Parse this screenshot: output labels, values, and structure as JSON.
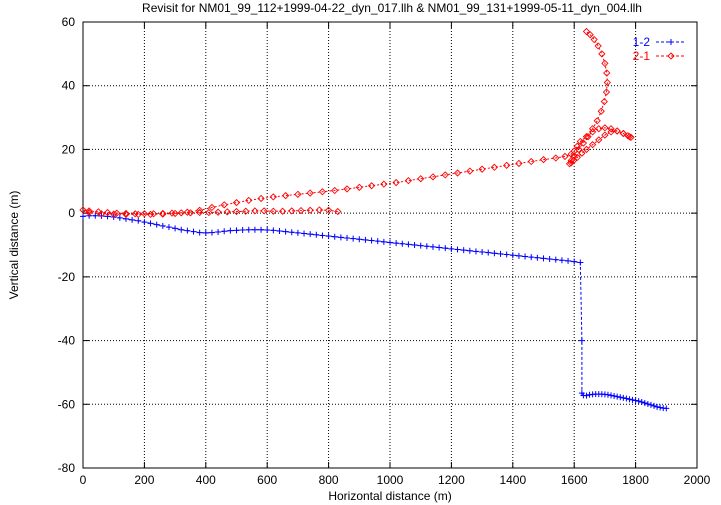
{
  "chart_data": {
    "type": "line",
    "title": "Revisit for NM01_99_112+1999-04-22_dyn_017.llh & NM01_99_131+1999-05-11_dyn_004.llh",
    "xlabel": "Horizontal distance (m)",
    "ylabel": "Vertical distance (m)",
    "xlim": [
      0,
      2000
    ],
    "ylim": [
      -80,
      60
    ],
    "xticks": [
      0,
      200,
      400,
      600,
      800,
      1000,
      1200,
      1400,
      1600,
      1800,
      2000
    ],
    "yticks": [
      -80,
      -60,
      -40,
      -20,
      0,
      20,
      40,
      60
    ],
    "grid": true,
    "legend_position": "top-right",
    "series": [
      {
        "name": "1-2",
        "color": "#0000ff",
        "marker": "plus",
        "x": [
          0,
          20,
          40,
          60,
          80,
          100,
          120,
          140,
          160,
          180,
          200,
          220,
          240,
          260,
          280,
          300,
          320,
          340,
          360,
          380,
          400,
          420,
          440,
          460,
          480,
          500,
          520,
          540,
          560,
          580,
          600,
          620,
          640,
          660,
          680,
          700,
          720,
          740,
          760,
          780,
          800,
          820,
          840,
          860,
          880,
          900,
          920,
          940,
          960,
          980,
          1000,
          1020,
          1040,
          1060,
          1080,
          1100,
          1120,
          1140,
          1160,
          1180,
          1200,
          1220,
          1240,
          1260,
          1280,
          1300,
          1320,
          1340,
          1360,
          1380,
          1400,
          1420,
          1440,
          1460,
          1480,
          1500,
          1520,
          1540,
          1560,
          1580,
          1600,
          1620,
          1625,
          1625,
          1630,
          1640,
          1650,
          1660,
          1670,
          1680,
          1690,
          1700,
          1710,
          1720,
          1730,
          1740,
          1750,
          1760,
          1770,
          1780,
          1790,
          1800,
          1810,
          1820,
          1830,
          1840,
          1850,
          1860,
          1870,
          1880,
          1890,
          1900
        ],
        "y": [
          -1,
          -0.8,
          -0.8,
          -0.9,
          -1,
          -1.2,
          -1.5,
          -1.8,
          -2.1,
          -2.4,
          -2.8,
          -3.2,
          -3.6,
          -4.0,
          -4.4,
          -4.8,
          -5.2,
          -5.5,
          -5.8,
          -6.1,
          -6.2,
          -6.1,
          -5.9,
          -5.7,
          -5.5,
          -5.4,
          -5.3,
          -5.2,
          -5.2,
          -5.2,
          -5.3,
          -5.4,
          -5.6,
          -5.8,
          -6.0,
          -6.2,
          -6.4,
          -6.6,
          -6.8,
          -7.0,
          -7.2,
          -7.4,
          -7.6,
          -7.8,
          -8.0,
          -8.2,
          -8.4,
          -8.6,
          -8.8,
          -9.0,
          -9.2,
          -9.4,
          -9.6,
          -9.8,
          -10.0,
          -10.2,
          -10.4,
          -10.6,
          -10.8,
          -11.0,
          -11.2,
          -11.4,
          -11.6,
          -11.8,
          -12.0,
          -12.2,
          -12.4,
          -12.6,
          -12.8,
          -13.0,
          -13.2,
          -13.4,
          -13.6,
          -13.8,
          -14.0,
          -14.2,
          -14.4,
          -14.6,
          -14.8,
          -15.0,
          -15.2,
          -15.5,
          -40,
          -56.5,
          -57.2,
          -57.3,
          -57.0,
          -56.9,
          -56.8,
          -56.8,
          -56.8,
          -56.9,
          -57.0,
          -57.2,
          -57.4,
          -57.6,
          -57.8,
          -58.0,
          -58.2,
          -58.4,
          -58.6,
          -58.8,
          -59.0,
          -59.3,
          -59.6,
          -59.9,
          -60.2,
          -60.5,
          -60.8,
          -61.0,
          -61.2,
          -61.3
        ]
      },
      {
        "name": "2-1",
        "color": "#ff0000",
        "marker": "diamond",
        "x": [
          830,
          800,
          770,
          740,
          710,
          680,
          650,
          620,
          590,
          560,
          530,
          500,
          470,
          440,
          410,
          380,
          350,
          320,
          290,
          260,
          230,
          200,
          170,
          140,
          110,
          80,
          50,
          20,
          0,
          20,
          60,
          100,
          140,
          180,
          220,
          260,
          300,
          340,
          380,
          420,
          460,
          500,
          540,
          580,
          620,
          660,
          700,
          740,
          780,
          820,
          860,
          900,
          940,
          980,
          1020,
          1060,
          1100,
          1140,
          1180,
          1220,
          1260,
          1300,
          1340,
          1380,
          1420,
          1460,
          1500,
          1540,
          1570,
          1590,
          1600,
          1610,
          1620,
          1640,
          1660,
          1680,
          1700,
          1720,
          1740,
          1760,
          1775,
          1785,
          1780,
          1760,
          1740,
          1720,
          1700,
          1680,
          1660,
          1640,
          1625,
          1610,
          1598,
          1590,
          1585,
          1590,
          1600,
          1615,
          1630,
          1645,
          1660,
          1675,
          1688,
          1698,
          1705,
          1708,
          1706,
          1700,
          1690,
          1678,
          1665,
          1652,
          1640
        ],
        "y": [
          0.5,
          0.9,
          1.0,
          0.9,
          0.8,
          0.7,
          0.6,
          0.6,
          0.7,
          0.7,
          0.6,
          0.5,
          0.4,
          0.3,
          0.2,
          0.2,
          0.1,
          0.1,
          0.0,
          -0.1,
          -0.2,
          -0.2,
          -0.2,
          -0.1,
          0.0,
          0.2,
          0.4,
          0.7,
          1.0,
          0.2,
          -0.2,
          -0.3,
          -0.4,
          -0.4,
          -0.4,
          -0.3,
          -0.1,
          0.3,
          0.9,
          1.8,
          2.6,
          3.3,
          4.0,
          4.6,
          5.1,
          5.5,
          5.9,
          6.3,
          6.7,
          7.1,
          7.6,
          8.1,
          8.6,
          9.1,
          9.6,
          10.2,
          10.8,
          11.4,
          12.0,
          12.6,
          13.2,
          13.8,
          14.4,
          15.0,
          15.6,
          16.2,
          16.8,
          17.3,
          17.8,
          18.5,
          19.5,
          21.0,
          22.5,
          24.0,
          25.5,
          26.5,
          26.8,
          26.5,
          25.8,
          25.0,
          24.3,
          23.8,
          24.0,
          25.0,
          25.8,
          25.5,
          24.5,
          23.0,
          21.5,
          20.0,
          18.8,
          17.5,
          16.5,
          15.8,
          15.5,
          16.5,
          18.0,
          20.0,
          22.0,
          24.0,
          26.5,
          29.0,
          32.0,
          35.0,
          38.0,
          41.0,
          44.0,
          47.0,
          50.0,
          52.5,
          54.5,
          56.0,
          57.0
        ]
      }
    ]
  }
}
